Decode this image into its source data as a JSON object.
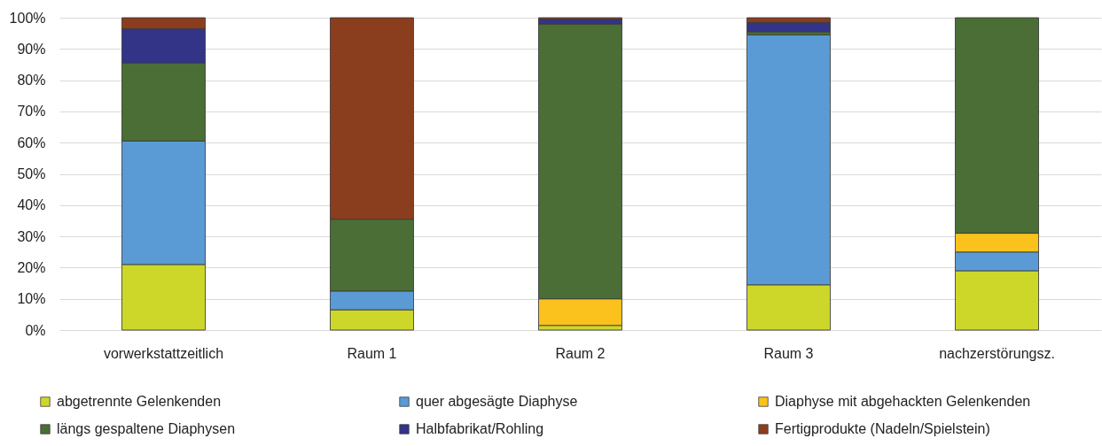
{
  "chart_data": {
    "type": "bar",
    "stacked": true,
    "categories": [
      "vorwerkstattzeitlich",
      "Raum 1",
      "Raum 2",
      "Raum 3",
      "nachzerstörungsz."
    ],
    "series": [
      {
        "name": "abgetrennte Gelenkenden",
        "color": "#cdd72a",
        "values": [
          21,
          6.5,
          1.5,
          14.5,
          19
        ]
      },
      {
        "name": "quer abgesägte Diaphyse",
        "color": "#5b9bd5",
        "values": [
          39.5,
          6,
          null,
          80,
          6
        ]
      },
      {
        "name": "Diaphyse mit abgehackten Gelenkenden",
        "color": "#fbc11c",
        "values": [
          null,
          null,
          8.5,
          null,
          6
        ]
      },
      {
        "name": "längs gespaltene Diaphysen",
        "color": "#4a6e35",
        "values": [
          25,
          23,
          88,
          1,
          69
        ]
      },
      {
        "name": "Halbfabrikat/Rohling",
        "color": "#333388",
        "values": [
          11,
          null,
          1.5,
          3,
          null
        ]
      },
      {
        "name": "Fertigprodukte (Nadeln/Spielstein)",
        "color": "#8b3e1e",
        "values": [
          3.5,
          64.5,
          0.5,
          1.5,
          null
        ]
      }
    ],
    "ylim": [
      0,
      100
    ],
    "yticks": [
      {
        "value": 0,
        "label": "0%"
      },
      {
        "value": 10,
        "label": "10%"
      },
      {
        "value": 20,
        "label": "20%"
      },
      {
        "value": 30,
        "label": "30%"
      },
      {
        "value": 40,
        "label": "40%"
      },
      {
        "value": 50,
        "label": "50%"
      },
      {
        "value": 60,
        "label": "60%"
      },
      {
        "value": 70,
        "label": "70%"
      },
      {
        "value": 80,
        "label": "80%"
      },
      {
        "value": 90,
        "label": "90%"
      },
      {
        "value": 100,
        "label": "100%"
      }
    ],
    "grid": true,
    "legend": "bottom"
  }
}
